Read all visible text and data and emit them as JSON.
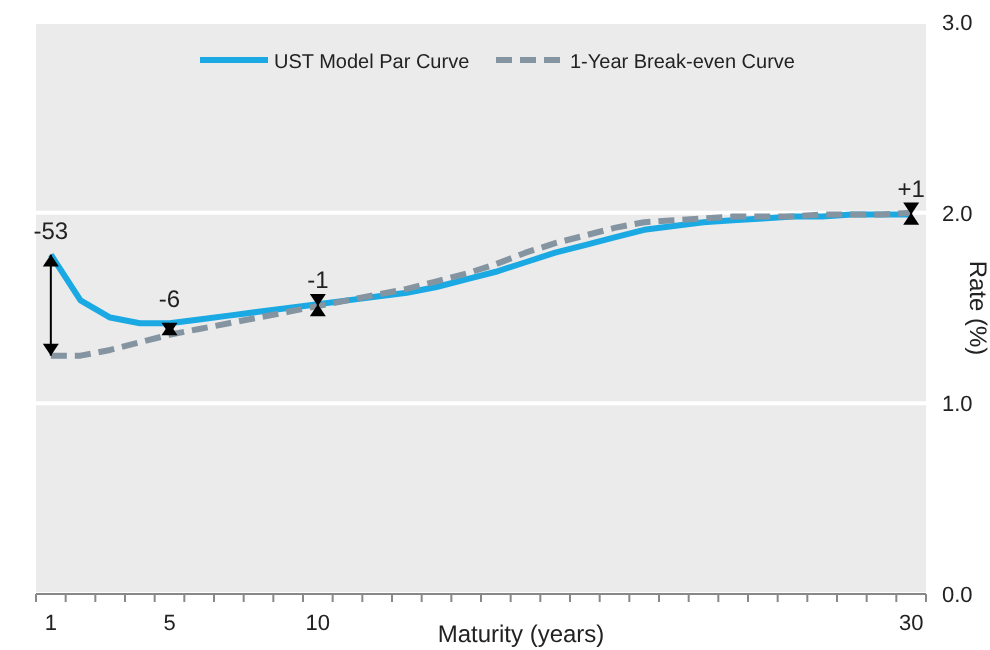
{
  "chart_data": {
    "type": "line",
    "xlabel": "Maturity (years)",
    "ylabel": "Rate (%)",
    "categories": [
      "1",
      null,
      null,
      null,
      "5",
      null,
      null,
      null,
      null,
      "10",
      null,
      null,
      null,
      null,
      null,
      null,
      null,
      null,
      null,
      null,
      null,
      null,
      null,
      null,
      null,
      null,
      null,
      null,
      null,
      "30"
    ],
    "series": [
      {
        "name": "UST Model Par Curve",
        "color": "#1ba9e3",
        "line_style": "solid",
        "values": [
          1.78,
          1.54,
          1.45,
          1.42,
          1.42,
          1.44,
          1.46,
          1.48,
          1.5,
          1.52,
          1.54,
          1.56,
          1.58,
          1.61,
          1.65,
          1.69,
          1.74,
          1.79,
          1.83,
          1.87,
          1.91,
          1.93,
          1.95,
          1.96,
          1.97,
          1.98,
          1.98,
          1.99,
          1.99,
          1.99
        ]
      },
      {
        "name": "1-Year Break-even Curve",
        "color": "#8494a0",
        "line_style": "dashed",
        "values": [
          1.25,
          1.25,
          1.28,
          1.32,
          1.36,
          1.39,
          1.42,
          1.45,
          1.48,
          1.51,
          1.54,
          1.57,
          1.6,
          1.64,
          1.68,
          1.73,
          1.79,
          1.84,
          1.88,
          1.92,
          1.95,
          1.96,
          1.97,
          1.98,
          1.98,
          1.98,
          1.99,
          1.99,
          1.99,
          2.0
        ]
      }
    ],
    "ylim": [
      0,
      3
    ],
    "yticks": [
      {
        "value": 0,
        "label": "0.0"
      },
      {
        "value": 1,
        "label": "1.0"
      },
      {
        "value": 2,
        "label": "2.0"
      },
      {
        "value": 3,
        "label": "3.0"
      }
    ],
    "grid": "y",
    "legend": "top",
    "annotations": [
      {
        "text": "-53",
        "x": "1",
        "y": 1.78
      },
      {
        "text": "-6",
        "x": "5",
        "y": 1.42
      },
      {
        "text": "-1",
        "x": "10",
        "y": 1.52
      },
      {
        "text": "+1",
        "x": "30",
        "y": 1.99
      }
    ]
  }
}
